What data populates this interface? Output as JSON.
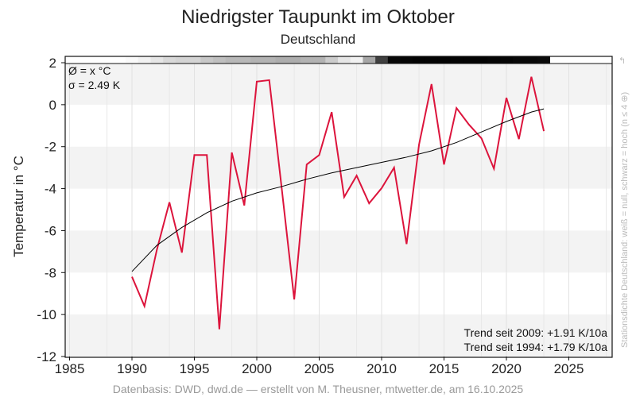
{
  "chart_data": {
    "type": "line",
    "title": "Niedrigster Taupunkt im Oktober",
    "subtitle": "Deutschland",
    "ylabel": "Temperatur in °C",
    "xlabel": "",
    "xlim": [
      1984.7,
      2028.5
    ],
    "ylim": [
      -12,
      2
    ],
    "xticks": [
      1985,
      1990,
      1995,
      2000,
      2005,
      2010,
      2015,
      2020,
      2025
    ],
    "yticks": [
      2,
      0,
      -2,
      -4,
      -6,
      -8,
      -10,
      -12
    ],
    "grid": true,
    "series": [
      {
        "color": "#dc143c",
        "x": [
          1990,
          1991,
          1992,
          1993,
          1994,
          1995,
          1996,
          1997,
          1998,
          1999,
          2000,
          2001,
          2002,
          2003,
          2004,
          2005,
          2006,
          2007,
          2008,
          2009,
          2010,
          2011,
          2012,
          2013,
          2014,
          2015,
          2016,
          2017,
          2018,
          2019,
          2020,
          2021,
          2022,
          2023
        ],
        "values": [
          -8.2,
          -9.6,
          -6.9,
          -4.65,
          -7.05,
          -2.4,
          -2.4,
          -10.7,
          -2.28,
          -4.8,
          1.1,
          1.17,
          -4.0,
          -9.28,
          -2.85,
          -2.4,
          -0.35,
          -4.4,
          -3.38,
          -4.7,
          -3.98,
          -3.0,
          -6.64,
          -1.9,
          0.98,
          -2.85,
          -0.16,
          -0.95,
          -1.6,
          -3.05,
          0.33,
          -1.64,
          1.33,
          -1.26
        ]
      },
      {
        "color": "#000000",
        "x": [
          1990,
          1992,
          1994,
          1996,
          1998,
          2000,
          2002,
          2004,
          2006,
          2008,
          2010,
          2012,
          2014,
          2016,
          2018,
          2020,
          2022,
          2023
        ],
        "values": [
          -7.95,
          -6.7,
          -5.85,
          -5.15,
          -4.6,
          -4.2,
          -3.9,
          -3.55,
          -3.25,
          -3.0,
          -2.75,
          -2.5,
          -2.2,
          -1.8,
          -1.3,
          -0.8,
          -0.35,
          -0.2
        ]
      }
    ],
    "density_bar": {
      "years": [
        1985,
        1986,
        1987,
        1988,
        1989,
        1990,
        1991,
        1992,
        1993,
        1994,
        1995,
        1996,
        1997,
        1998,
        1999,
        2000,
        2001,
        2002,
        2003,
        2004,
        2005,
        2006,
        2007,
        2008,
        2009,
        2010,
        2011,
        2012,
        2013,
        2014,
        2015,
        2016,
        2017,
        2018,
        2019,
        2020,
        2021,
        2022,
        2023,
        2024,
        2025,
        2026,
        2027,
        2028
      ],
      "darkness": [
        0,
        0,
        0,
        0,
        0,
        0.02,
        0.05,
        0.1,
        0.15,
        0.17,
        0.17,
        0.22,
        0.25,
        0.28,
        0.28,
        0.3,
        0.3,
        0.32,
        0.32,
        0.3,
        0.3,
        0.2,
        0.1,
        0.05,
        0.35,
        0.75,
        0.97,
        0.98,
        0.99,
        0.99,
        0.99,
        0.99,
        0.99,
        0.99,
        0.98,
        0.98,
        0.97,
        0.97,
        0.96,
        0,
        0,
        0,
        0,
        0
      ]
    },
    "stats": {
      "mean": "Ø = x °C",
      "sigma": "σ = 2.49 K"
    },
    "trends": [
      "Trend seit 2009: +1.91 K/10a",
      "Trend seit 1994: +1.79 K/10a"
    ],
    "side_note": "Stationsdichte Deutschland: weiß = null, schwarz = hoch (n ≤ 4 ⊕)",
    "source": "Datenbasis: DWD, dwd.de — erstellt von M. Theusner, mtwetter.de, am 16.10.2025"
  }
}
